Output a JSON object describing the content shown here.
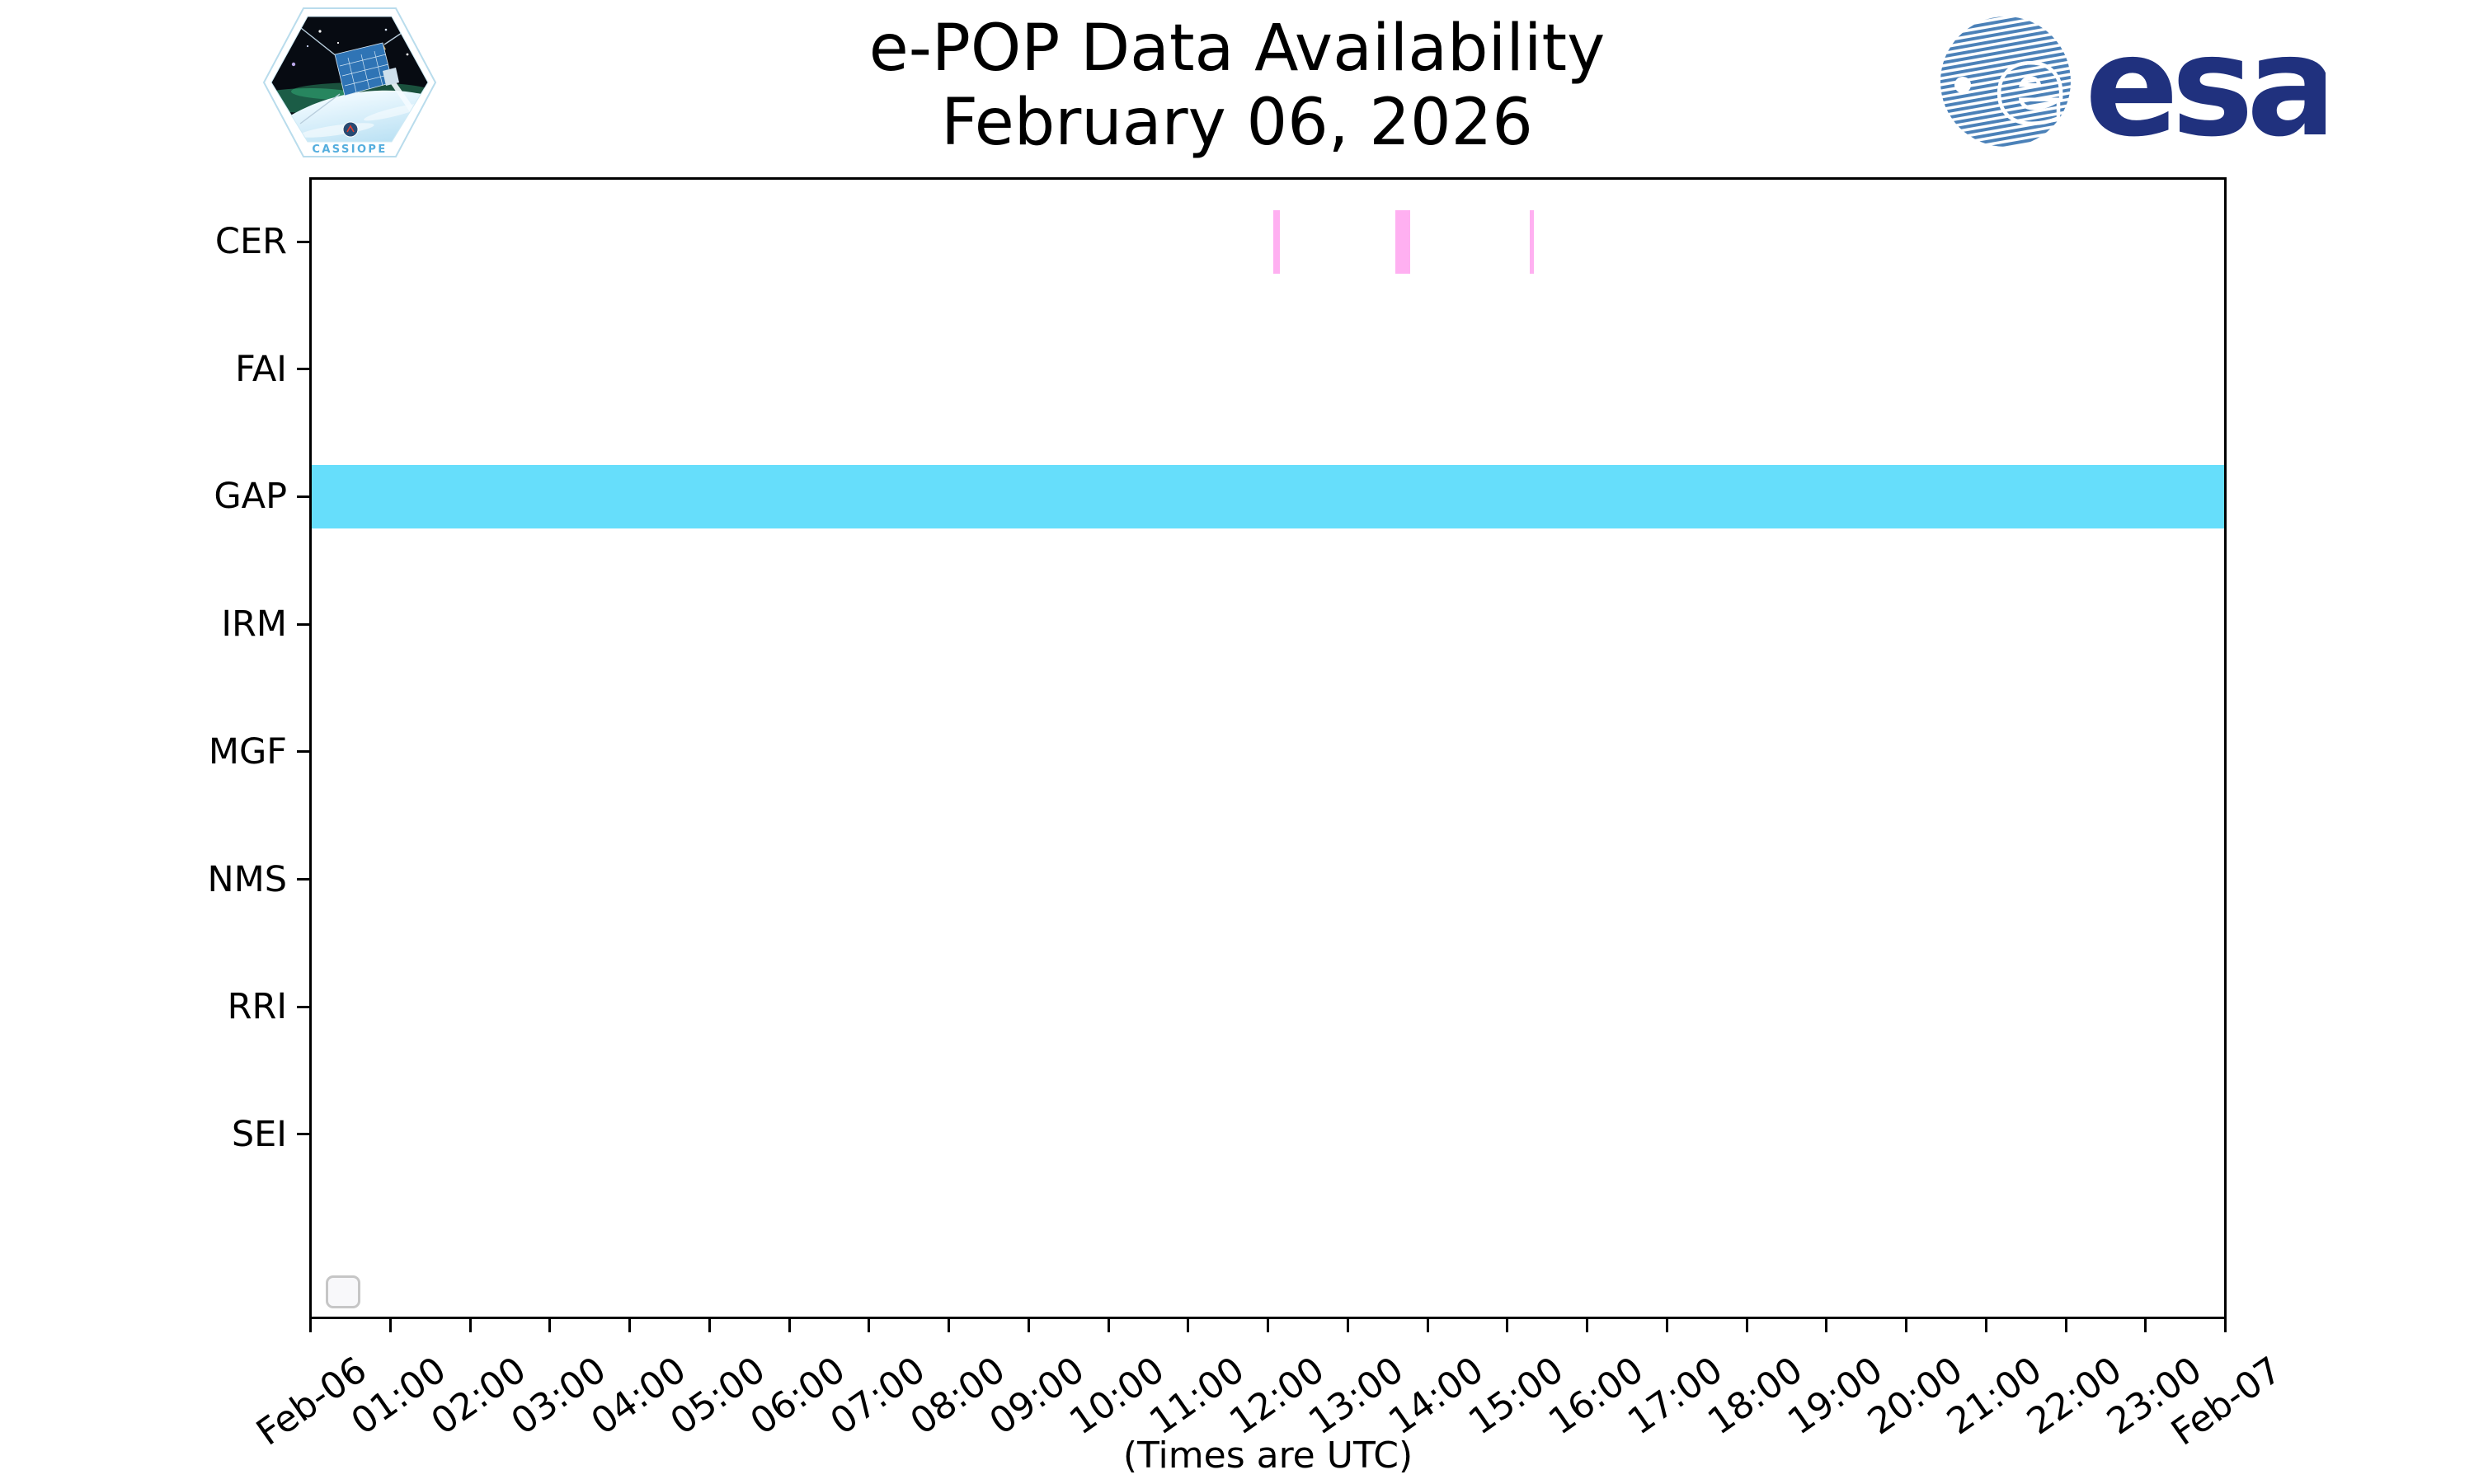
{
  "chart_data": {
    "type": "timeline",
    "title": "e-POP Data Availability",
    "subtitle": "February 06, 2026",
    "xlabel": "(Times are UTC)",
    "x_axis": {
      "tick_labels": [
        "Feb-06",
        "01:00",
        "02:00",
        "03:00",
        "04:00",
        "05:00",
        "06:00",
        "07:00",
        "08:00",
        "09:00",
        "10:00",
        "11:00",
        "12:00",
        "13:00",
        "14:00",
        "15:00",
        "16:00",
        "17:00",
        "18:00",
        "19:00",
        "20:00",
        "21:00",
        "22:00",
        "23:00",
        "Feb-07"
      ],
      "range_hours": [
        0,
        24
      ]
    },
    "categories": [
      "CER",
      "FAI",
      "GAP",
      "IRM",
      "MGF",
      "NMS",
      "RRI",
      "SEI"
    ],
    "series": [
      {
        "instrument": "CER",
        "color": "#ffb0f1",
        "intervals": [
          {
            "start": "12:04",
            "end": "12:09"
          },
          {
            "start": "13:36",
            "end": "13:47"
          },
          {
            "start": "15:17",
            "end": "15:20"
          }
        ]
      },
      {
        "instrument": "GAP",
        "color": "#66defb",
        "intervals": [
          {
            "start": "00:00",
            "end": "24:00"
          }
        ]
      }
    ],
    "legend": {
      "visible": true,
      "entries": []
    },
    "axis_color": "#000000",
    "grid": false
  },
  "logos": {
    "cassiope_label": "CASSIOPE",
    "esa_label": "esa"
  }
}
